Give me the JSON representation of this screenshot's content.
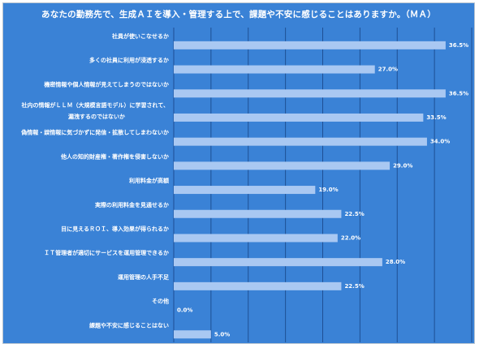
{
  "chart_data": {
    "type": "bar",
    "orientation": "horizontal",
    "title": "あなたの勤務先で、生成ＡＩを導入・管理する上で、課題や不安に感じることはありますか。（ＭＡ）",
    "categories": [
      "社員が使いこなせるか",
      "多くの社員に利用が浸透するか",
      "機密情報や個人情報が見えてしまうのではないか",
      "社内の情報がＬＬＭ（大規模言語モデル）に学習されて、\n漏洩するのではないか",
      "偽情報・誤情報に気づかずに発信・拡散してしまわないか",
      "他人の知的財産権・著作権を侵害しないか",
      "利用料金が高額",
      "実際の利用料金を見通せるか",
      "目に見えるＲＯＩ、導入効果が得られるか",
      "ＩＴ管理者が適切にサービスを運用管理できるか",
      "運用管理の人手不足",
      "その他",
      "課題や不安に感じることはない"
    ],
    "values": [
      36.5,
      27.0,
      36.5,
      33.5,
      34.0,
      29.0,
      19.0,
      22.5,
      22.0,
      28.0,
      22.5,
      0.0,
      5.0
    ],
    "value_labels": [
      "36.5%",
      "27.0%",
      "36.5%",
      "33.5%",
      "34.0%",
      "29.0%",
      "19.0%",
      "22.5%",
      "22.0%",
      "28.0%",
      "22.5%",
      "0.0%",
      "5.0%"
    ],
    "xlim": [
      0,
      40
    ],
    "grid": true,
    "colors": {
      "background": "#3a82d6",
      "bar": "#a9c8f2",
      "grid": "#1e4f94",
      "text": "#ffffff"
    }
  }
}
